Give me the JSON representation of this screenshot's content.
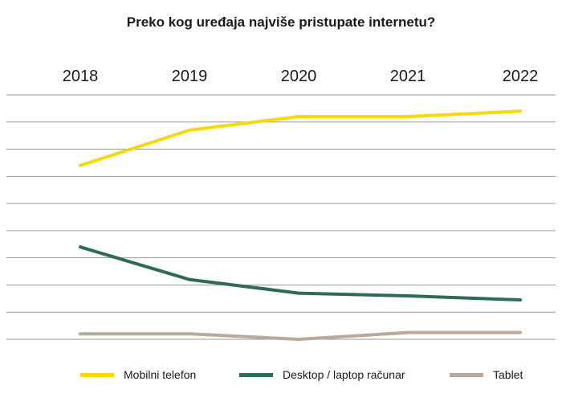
{
  "chart_data": {
    "type": "line",
    "title": "Preko kog uređaja najviše pristupate internetu?",
    "categories": [
      "2018",
      "2019",
      "2020",
      "2021",
      "2022"
    ],
    "series": [
      {
        "name": "Mobilni telefon",
        "color": "#f5d90a",
        "values": [
          64,
          77,
          82,
          82,
          84
        ]
      },
      {
        "name": "Desktop / laptop računar",
        "color": "#2f6b54",
        "values": [
          34,
          22,
          17,
          16,
          14.5
        ]
      },
      {
        "name": "Tablet",
        "color": "#b8a99a",
        "values": [
          2,
          2,
          0,
          2.5,
          2.5
        ]
      }
    ],
    "ylim": [
      0,
      90
    ],
    "y_tick_labels_visible": false,
    "grid": "horizontal",
    "legend_position": "bottom"
  }
}
